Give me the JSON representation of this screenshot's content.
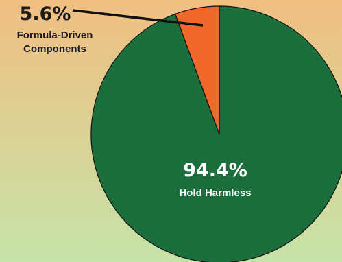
{
  "chart_data": {
    "type": "pie",
    "title": "",
    "slices": [
      {
        "label": "Formula-Driven Components",
        "label_lines": [
          "Formula-Driven",
          "Components"
        ],
        "value": 5.6,
        "value_label": "5.6%",
        "color": "#f0692a"
      },
      {
        "label": "Hold Harmless",
        "label_lines": [
          "Hold Harmless"
        ],
        "value": 94.4,
        "value_label": "94.4%",
        "color": "#1c6e3d"
      }
    ],
    "background_gradient": [
      "#f1bf82",
      "#c6e3a8"
    ],
    "outline_color": "#111111",
    "label_colors": {
      "outside": "#1a1a1a",
      "inside": "#ffffff"
    }
  }
}
